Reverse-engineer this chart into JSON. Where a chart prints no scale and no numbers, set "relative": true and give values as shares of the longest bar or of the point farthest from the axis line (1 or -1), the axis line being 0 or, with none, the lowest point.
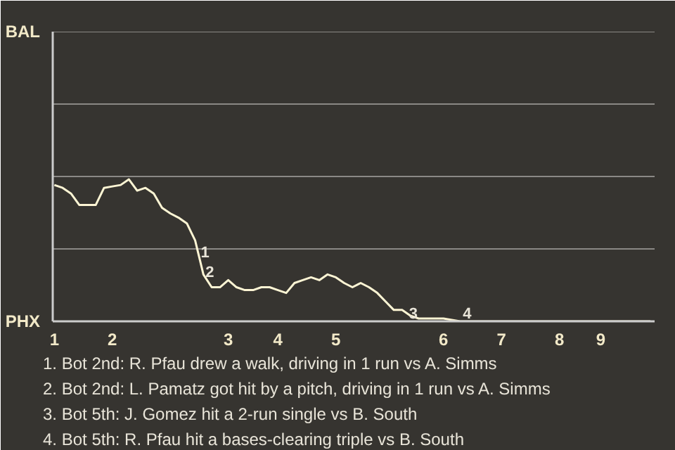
{
  "chart_data": {
    "type": "line",
    "relative": true,
    "categories": [
      "1",
      null,
      null,
      null,
      null,
      null,
      null,
      "2",
      null,
      null,
      null,
      null,
      null,
      null,
      null,
      null,
      null,
      null,
      null,
      null,
      null,
      "3",
      null,
      null,
      null,
      null,
      null,
      "4",
      null,
      null,
      null,
      null,
      null,
      null,
      "5",
      null,
      null,
      null,
      null,
      null,
      null,
      null,
      null,
      null,
      null,
      null,
      null,
      "6",
      null,
      null,
      null,
      null,
      null,
      null,
      "7",
      null,
      null,
      null,
      null,
      null,
      null,
      "8",
      null,
      null,
      null,
      null,
      "9",
      null,
      null,
      null,
      null,
      null,
      null
    ],
    "series": [
      {
        "color": "#fdf5d4",
        "values": [
          0.96,
          0.94,
          0.9,
          0.82,
          0.82,
          0.82,
          0.94,
          0.95,
          0.96,
          1.0,
          0.92,
          0.94,
          0.9,
          0.8,
          0.76,
          0.73,
          0.69,
          0.57,
          0.33,
          0.24,
          0.24,
          0.29,
          0.24,
          0.22,
          0.22,
          0.24,
          0.24,
          0.22,
          0.2,
          0.27,
          0.29,
          0.31,
          0.29,
          0.33,
          0.31,
          0.27,
          0.24,
          0.27,
          0.24,
          0.2,
          0.14,
          0.08,
          0.08,
          0.04,
          0.02,
          0.02,
          0.02,
          0.02,
          0.01,
          0,
          0,
          0,
          0,
          0,
          0,
          0,
          0,
          0,
          0,
          0,
          0,
          0,
          0,
          0,
          0,
          0,
          0,
          0,
          0,
          0,
          0,
          0,
          0
        ]
      }
    ],
    "line_style": "solid",
    "ref_lines": [
      {
        "axis": "y",
        "value": 0.51
      },
      {
        "axis": "y",
        "value": 1.02
      },
      {
        "axis": "y",
        "value": 1.53
      },
      {
        "axis": "y",
        "value": 2.04
      }
    ],
    "annotations": [
      "BAL",
      "PHX",
      {
        "text": "1",
        "y": 0.49
      },
      {
        "text": "2",
        "y": 0.35
      },
      {
        "text": "3",
        "y": 0.06
      },
      {
        "text": "4",
        "y": 0
      },
      "1. Bot 2nd: R. Pfau drew a walk, driving in 1 run vs A. Simms",
      "2. Bot 2nd: L. Pamatz got hit by a pitch, driving in 1 run vs A. Simms",
      "3. Bot 5th: J. Gomez hit a 2-run single vs B. South",
      "4. Bot 5th: R. Pfau hit a bases-clearing triple vs B. South"
    ]
  }
}
